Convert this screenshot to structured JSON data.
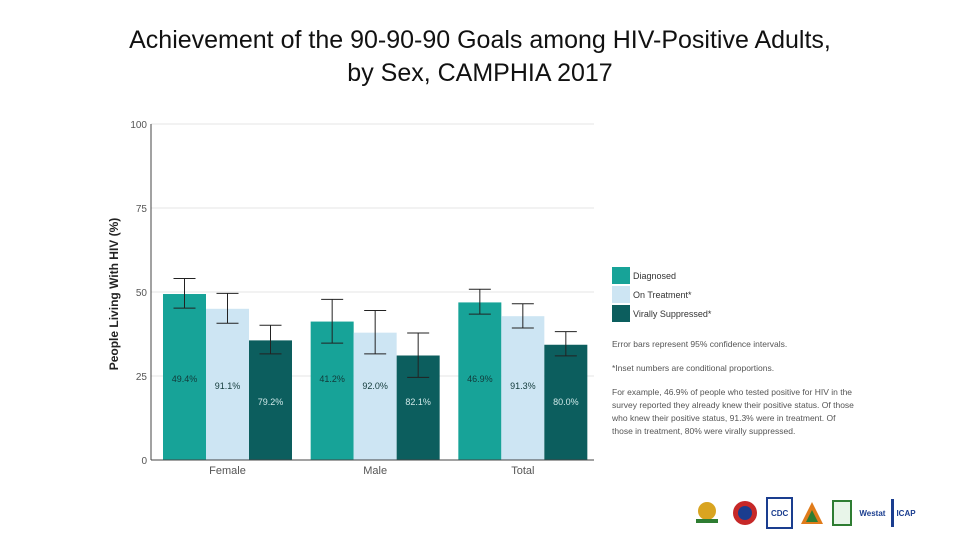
{
  "title_line1": "Achievement of the 90-90-90 Goals among HIV-Positive Adults,",
  "title_line2": "by Sex, CAMPHIA 2017",
  "chart_data": {
    "type": "bar",
    "ylabel": "People Living With HIV (%)",
    "ylim": [
      0,
      100
    ],
    "yticks": [
      0,
      25,
      50,
      75,
      100
    ],
    "categories": [
      "Female",
      "Male",
      "Total"
    ],
    "series": [
      {
        "name": "Diagnosed",
        "color": "#17a398",
        "values": [
          49.4,
          41.2,
          46.9
        ],
        "ci_low": [
          45.2,
          34.8,
          43.4
        ],
        "ci_high": [
          54.0,
          47.8,
          50.8
        ],
        "labels": [
          "49.4%",
          "41.2%",
          "46.9%"
        ]
      },
      {
        "name": "On Treatment*",
        "color": "#cde5f3",
        "values": [
          45.0,
          37.9,
          42.8
        ],
        "ci_low": [
          40.7,
          31.6,
          39.3
        ],
        "ci_high": [
          49.6,
          44.5,
          46.5
        ],
        "labels": [
          "91.1%",
          "92.0%",
          "91.3%"
        ]
      },
      {
        "name": "Virally Suppressed*",
        "color": "#0c5e5e",
        "values": [
          35.6,
          31.1,
          34.3
        ],
        "ci_low": [
          31.6,
          24.6,
          31.0
        ],
        "ci_high": [
          40.1,
          37.8,
          38.2
        ],
        "labels": [
          "79.2%",
          "82.1%",
          "80.0%"
        ]
      }
    ]
  },
  "notes": {
    "error_bars": "Error bars represent 95% confidence intervals.",
    "inset": "*Inset numbers are conditional proportions.",
    "example": "For example, 46.9% of people who tested positive for HIV in the survey reported they already knew their positive status. Of those who knew their positive status, 91.3% were in treatment. Of those in treatment, 80% were virally suppressed."
  },
  "logos": {
    "cdc": "CDC",
    "westat": "Westat",
    "icap": "ICAP"
  }
}
